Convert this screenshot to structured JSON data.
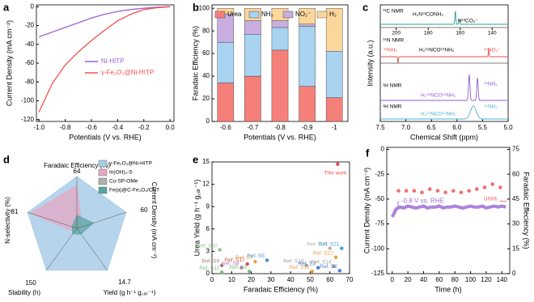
{
  "chart_data": [
    {
      "type": "line",
      "panel_label": "a",
      "xlabel": "Potentials (V vs. RHE)",
      "ylabel": "Current Density (mA cm⁻²)",
      "x": [
        -1,
        -0.9,
        -0.8,
        -0.7,
        -0.6,
        -0.5,
        -0.4,
        -0.3,
        -0.2,
        -0.1,
        0
      ],
      "series": [
        {
          "name": "Ni-HITP",
          "color": "#9b5fd0",
          "values": [
            -32,
            -27,
            -22,
            -17,
            -12,
            -8,
            -5,
            -3,
            -1.5,
            -0.5,
            0
          ]
        },
        {
          "name": "γ-Fe₂O₃@Ni-HITP",
          "color": "#f05050",
          "values": [
            -112,
            -82,
            -62,
            -48,
            -36,
            -25,
            -15,
            -8,
            -3,
            -1,
            0
          ]
        }
      ],
      "xlim": [
        -1.02,
        0.03
      ],
      "xticks": [
        {
          "value": -1,
          "label": "-1.0"
        },
        -0.8,
        -0.6,
        -0.4,
        -0.2,
        {
          "value": 0,
          "label": "0.0"
        }
      ],
      "ylim": [
        -122,
        2
      ],
      "yticks": [
        0,
        -20,
        -40,
        -60,
        -80,
        -100,
        -120
      ]
    },
    {
      "type": "stacked_bar",
      "panel_label": "b",
      "xlabel": "Potentials (V vs. RHE)",
      "ylabel": "Faradaic Efficiency (%)",
      "categories": [
        "-0.6",
        "-0.7",
        "-0.8",
        "-0.9",
        "-1"
      ],
      "series": [
        {
          "name": "Urea",
          "color": "#f5807a",
          "values": [
            34,
            40,
            63,
            31,
            21
          ]
        },
        {
          "name": "NH₃",
          "color": "#a9d3f0",
          "values": [
            36,
            37,
            20,
            53,
            41
          ]
        },
        {
          "name": "NO₂⁻",
          "color": "#c9aee0",
          "values": [
            25,
            12,
            6,
            2,
            0
          ]
        },
        {
          "name": "H₂",
          "color": "#fcd79c",
          "values": [
            5,
            11,
            11,
            14,
            38
          ]
        }
      ],
      "ylim": [
        0,
        103
      ],
      "yticks": [
        0,
        20,
        40,
        60,
        80,
        100
      ]
    },
    {
      "type": "nmr",
      "panel_label": "c",
      "xlabel": "Chemical Shift (ppm)",
      "ylabel": "Intensity (a.u.)",
      "xlim": [
        7.5,
        5
      ],
      "xticks": [
        7.5,
        {
          "value": 7,
          "label": "7.0"
        },
        6.5,
        {
          "value": 6,
          "label": "6.0"
        },
        5.5,
        {
          "value": 5,
          "label": "5.0"
        }
      ],
      "subpanels": [
        {
          "title": "¹³C NMR",
          "xlim": [
            210,
            130
          ],
          "xticks": [
            200,
            180,
            160,
            140
          ],
          "annotations": [
            "H₂N¹³CONH₂",
            "H¹³CO₃⁻"
          ]
        },
        {
          "title": "¹⁵N NMR",
          "annotations": [
            "¹⁵NH₂",
            "H₂¹⁵NCO¹⁵NH₂",
            "¹⁵NO₂⁻"
          ]
        },
        {
          "title": "¹H NMR",
          "annotations": [
            "H₂¹⁵NCO¹⁵NH₂",
            "¹⁵NH₂"
          ]
        },
        {
          "title": "¹H NMR",
          "annotations": [
            "H₂¹⁴NCO¹⁴NH₂",
            "¹⁴NH₂"
          ]
        }
      ]
    },
    {
      "type": "radar",
      "panel_label": "d",
      "axes": [
        {
          "label": "Faradaic Efficiency (%)",
          "max": 64
        },
        {
          "label": "Current Density (mA cm⁻²)",
          "max": 60
        },
        {
          "label": "Yield (g h⁻¹ g꜀ₐₜ⁻¹)",
          "max": 14.7
        },
        {
          "label": "Stability (h)",
          "max": 150
        },
        {
          "label": "N-selectivity (%)",
          "max": 81
        }
      ],
      "series": [
        {
          "name": "γ-Fe₂O₃@Ni-HITP",
          "color": "#a9cde8",
          "values": [
            64,
            60,
            14.7,
            150,
            81
          ]
        },
        {
          "name": "In(OH)₃-S",
          "color": "#e4a8c4",
          "values": [
            53,
            6,
            0.6,
            12,
            76
          ]
        },
        {
          "name": "Cu-SP-OMe",
          "color": "#b0b0b0",
          "values": [
            10,
            4,
            0.4,
            10,
            5
          ]
        },
        {
          "name": "Fe(a)@C-Fe₃O₄/CNT",
          "color": "#5aa5a5",
          "values": [
            16,
            20,
            2,
            20,
            8
          ]
        }
      ]
    },
    {
      "type": "scatter",
      "panel_label": "e",
      "xlabel": "Faradaic Efficiency (%)",
      "ylabel": "Urea Yield (g h⁻¹ g꜀ₐₜ⁻¹)",
      "x": [
        64,
        4,
        5,
        5,
        18,
        22,
        15,
        19,
        28,
        48,
        54,
        51,
        62,
        60,
        66,
        63,
        65
      ],
      "values": [
        14.7,
        3.2,
        1.1,
        0.2,
        1.3,
        1.6,
        0.8,
        0.3,
        1.8,
        1.1,
        0.8,
        0.3,
        1.0,
        3.4,
        3.4,
        2.2,
        0.4
      ],
      "point_labels": [
        "This work",
        "Ref. S10",
        "Ref. S9",
        "Ref. S11",
        "Ref. S17",
        "Ref. S7",
        "Ref. S8",
        "Ref. S6",
        "Ref. S5",
        "Ref. S18",
        "Ref. S3",
        "Ref. S12",
        "Ref. S14",
        "Ref. S16",
        "Ref. S21",
        "Ref. S22",
        "Ref. S2"
      ],
      "colors": [
        "#e84a4a",
        "#8cc88c",
        "#a08070",
        "#7cbf7c",
        "#d05050",
        "#e8a040",
        "#b07cc0",
        "#7cbf7c",
        "#4a8fd0",
        "#a0a0a0",
        "#4a7fd0",
        "#e8a040",
        "#a0a0a0",
        "#b0b0b0",
        "#4aa0d0",
        "#e8a040",
        "#4a7fd0"
      ],
      "xlim": [
        0,
        70
      ],
      "xticks": [
        0,
        10,
        20,
        30,
        40,
        50,
        60,
        70
      ],
      "ylim": [
        0,
        15
      ],
      "yticks": [
        0,
        3,
        6,
        9,
        12,
        15
      ]
    },
    {
      "type": "dual_axis",
      "panel_label": "f",
      "xlabel": "Time (h)",
      "ylabel": "Current Density (mA cm⁻²)",
      "y2label": "Faradaic Effeciency (%)",
      "annotation": "-0.8 V vs. RHE",
      "series": [
        {
          "color": "#9b6fd6",
          "x": [
            0,
            5,
            10,
            15,
            20,
            25,
            30,
            35,
            40,
            45,
            50,
            55,
            60,
            65,
            70,
            75,
            80,
            85,
            90,
            95,
            100,
            105,
            110,
            115,
            120,
            125,
            130,
            135,
            140,
            145
          ],
          "values": [
            -68,
            -60,
            -58,
            -59,
            -57,
            -58,
            -59,
            -58,
            -57,
            -59,
            -58,
            -58,
            -57,
            -59,
            -58,
            -58,
            -57,
            -58,
            -59,
            -58,
            -57,
            -58,
            -58,
            -57,
            -59,
            -58,
            -57,
            -58,
            -57,
            -58
          ]
        },
        {
          "name": "urea",
          "color": "#f07070",
          "axis": "y2",
          "x": [
            8,
            18,
            28,
            38,
            48,
            58,
            68,
            78,
            88,
            98,
            108,
            118,
            128,
            138
          ],
          "values": [
            50,
            50,
            50,
            49,
            51,
            50,
            49,
            50,
            49,
            50,
            51,
            52,
            54,
            52
          ]
        }
      ],
      "xlim": [
        -7,
        150
      ],
      "xticks": [
        0,
        20,
        40,
        60,
        80,
        100,
        120,
        140
      ],
      "ylim": [
        -125,
        2
      ],
      "yticks": [
        -125,
        -100,
        -75,
        -50,
        -25,
        0
      ],
      "y2lim": [
        0,
        76.2
      ],
      "y2ticks": [
        0,
        15,
        30,
        45,
        60,
        75
      ]
    }
  ]
}
